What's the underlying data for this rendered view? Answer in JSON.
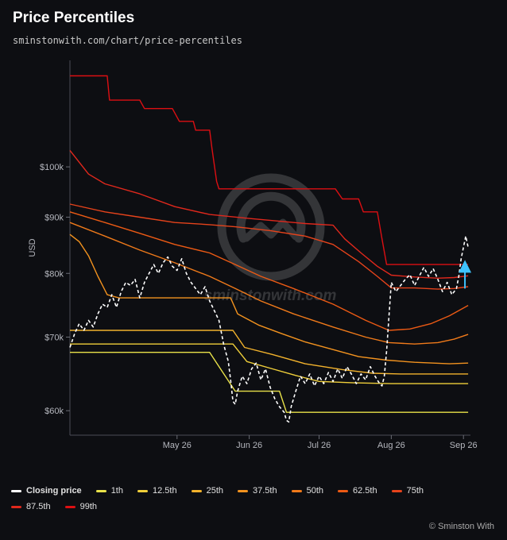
{
  "header": {
    "title": "Price Percentiles",
    "subtitle": "sminstonwith.com/chart/price-percentiles"
  },
  "watermark": "sminstonwith.com",
  "credit": "© Sminston With",
  "chart_data": {
    "type": "line",
    "ylabel": "USD",
    "y_scale": "log",
    "ylim": [
      57000,
      125000
    ],
    "yticks": [
      60000,
      70000,
      80000,
      90000,
      100000
    ],
    "ytick_labels": [
      "$60k",
      "$70k",
      "$80k",
      "$90k",
      "$100k"
    ],
    "xlim": [
      "2024-04-10",
      "2024-09-29"
    ],
    "xticks": [
      "2024-05-26",
      "2024-06-26",
      "2024-07-26",
      "2024-08-26",
      "2024-09-26"
    ],
    "xtick_labels": [
      "May 26",
      "Jun 26",
      "Jul 26",
      "Aug 26",
      "Sep 26"
    ],
    "grid": false,
    "legend_position": "bottom",
    "colors": {
      "closing_price": "#ffffff",
      "arrow": "#3ec3ff",
      "p1": "#e9e24a",
      "p12_5": "#f0cf3a",
      "p25": "#f2b22c",
      "p37_5": "#f3931f",
      "p50": "#f07a1a",
      "p62_5": "#ec5a14",
      "p75": "#e6431b",
      "p87_5": "#e0281c",
      "p99": "#dc0f12"
    },
    "series": [
      {
        "name": "Closing price",
        "key": "closing_price",
        "style": "dashed",
        "points": [
          [
            "2024-04-10",
            68500
          ],
          [
            "2024-04-12",
            70500
          ],
          [
            "2024-04-14",
            72000
          ],
          [
            "2024-04-16",
            71000
          ],
          [
            "2024-04-18",
            72500
          ],
          [
            "2024-04-20",
            71500
          ],
          [
            "2024-04-22",
            73500
          ],
          [
            "2024-04-24",
            75000
          ],
          [
            "2024-04-26",
            74500
          ],
          [
            "2024-04-28",
            76500
          ],
          [
            "2024-04-30",
            74500
          ],
          [
            "2024-05-02",
            77000
          ],
          [
            "2024-05-04",
            78500
          ],
          [
            "2024-05-06",
            78000
          ],
          [
            "2024-05-08",
            79000
          ],
          [
            "2024-05-10",
            76000
          ],
          [
            "2024-05-12",
            78500
          ],
          [
            "2024-05-14",
            80000
          ],
          [
            "2024-05-16",
            81500
          ],
          [
            "2024-05-18",
            80000
          ],
          [
            "2024-05-20",
            81800
          ],
          [
            "2024-05-22",
            82800
          ],
          [
            "2024-05-24",
            81200
          ],
          [
            "2024-05-26",
            80500
          ],
          [
            "2024-05-28",
            82500
          ],
          [
            "2024-05-30",
            80000
          ],
          [
            "2024-06-01",
            78500
          ],
          [
            "2024-06-03",
            77500
          ],
          [
            "2024-06-05",
            76500
          ],
          [
            "2024-06-07",
            77800
          ],
          [
            "2024-06-09",
            75500
          ],
          [
            "2024-06-11",
            74000
          ],
          [
            "2024-06-13",
            72500
          ],
          [
            "2024-06-15",
            69000
          ],
          [
            "2024-06-17",
            66500
          ],
          [
            "2024-06-18",
            64000
          ],
          [
            "2024-06-19",
            61200
          ],
          [
            "2024-06-20",
            60800
          ],
          [
            "2024-06-21",
            62500
          ],
          [
            "2024-06-23",
            64500
          ],
          [
            "2024-06-25",
            63500
          ],
          [
            "2024-06-27",
            65500
          ],
          [
            "2024-06-29",
            66300
          ],
          [
            "2024-07-01",
            64000
          ],
          [
            "2024-07-03",
            65500
          ],
          [
            "2024-07-05",
            63000
          ],
          [
            "2024-07-07",
            61500
          ],
          [
            "2024-07-09",
            60500
          ],
          [
            "2024-07-11",
            59800
          ],
          [
            "2024-07-12",
            58800
          ],
          [
            "2024-07-13",
            58600
          ],
          [
            "2024-07-14",
            60500
          ],
          [
            "2024-07-16",
            62500
          ],
          [
            "2024-07-18",
            64500
          ],
          [
            "2024-07-20",
            63500
          ],
          [
            "2024-07-22",
            64800
          ],
          [
            "2024-07-24",
            63200
          ],
          [
            "2024-07-26",
            64500
          ],
          [
            "2024-07-28",
            63500
          ],
          [
            "2024-07-30",
            65000
          ],
          [
            "2024-08-01",
            63800
          ],
          [
            "2024-08-03",
            65500
          ],
          [
            "2024-08-05",
            64200
          ],
          [
            "2024-08-07",
            65800
          ],
          [
            "2024-08-09",
            64700
          ],
          [
            "2024-08-11",
            63500
          ],
          [
            "2024-08-13",
            64800
          ],
          [
            "2024-08-15",
            64000
          ],
          [
            "2024-08-17",
            65800
          ],
          [
            "2024-08-19",
            64500
          ],
          [
            "2024-08-21",
            63500
          ],
          [
            "2024-08-22",
            63200
          ],
          [
            "2024-08-23",
            64500
          ],
          [
            "2024-08-24",
            68000
          ],
          [
            "2024-08-25",
            73000
          ],
          [
            "2024-08-26",
            78500
          ],
          [
            "2024-08-28",
            77000
          ],
          [
            "2024-08-30",
            78000
          ],
          [
            "2024-09-01",
            79000
          ],
          [
            "2024-09-03",
            79800
          ],
          [
            "2024-09-05",
            78000
          ],
          [
            "2024-09-07",
            79500
          ],
          [
            "2024-09-09",
            81000
          ],
          [
            "2024-09-11",
            79500
          ],
          [
            "2024-09-13",
            80800
          ],
          [
            "2024-09-15",
            79000
          ],
          [
            "2024-09-17",
            77000
          ],
          [
            "2024-09-19",
            78500
          ],
          [
            "2024-09-21",
            76500
          ],
          [
            "2024-09-23",
            77500
          ],
          [
            "2024-09-24",
            79500
          ],
          [
            "2024-09-25",
            82500
          ],
          [
            "2024-09-26",
            84500
          ],
          [
            "2024-09-27",
            86500
          ],
          [
            "2024-09-28",
            84500
          ]
        ]
      },
      {
        "name": "1th",
        "key": "p1",
        "points": [
          [
            "2024-04-10",
            67800
          ],
          [
            "2024-06-09",
            67800
          ],
          [
            "2024-06-20",
            62500
          ],
          [
            "2024-07-09",
            62500
          ],
          [
            "2024-07-12",
            59800
          ],
          [
            "2024-09-28",
            59800
          ]
        ]
      },
      {
        "name": "12.5th",
        "key": "p12_5",
        "points": [
          [
            "2024-04-10",
            69000
          ],
          [
            "2024-06-19",
            69000
          ],
          [
            "2024-06-25",
            66500
          ],
          [
            "2024-07-06",
            65500
          ],
          [
            "2024-07-16",
            64600
          ],
          [
            "2024-07-26",
            63800
          ],
          [
            "2024-08-10",
            63600
          ],
          [
            "2024-08-26",
            63500
          ],
          [
            "2024-09-28",
            63500
          ]
        ]
      },
      {
        "name": "25th",
        "key": "p25",
        "points": [
          [
            "2024-04-10",
            71000
          ],
          [
            "2024-06-19",
            71000
          ],
          [
            "2024-06-24",
            68500
          ],
          [
            "2024-07-06",
            67500
          ],
          [
            "2024-07-20",
            66200
          ],
          [
            "2024-08-05",
            65400
          ],
          [
            "2024-08-18",
            64900
          ],
          [
            "2024-08-30",
            64800
          ],
          [
            "2024-09-28",
            64800
          ]
        ]
      },
      {
        "name": "37.5th",
        "key": "p37_5",
        "points": [
          [
            "2024-04-10",
            86800
          ],
          [
            "2024-04-14",
            85500
          ],
          [
            "2024-04-18",
            83000
          ],
          [
            "2024-04-22",
            79500
          ],
          [
            "2024-04-26",
            76500
          ],
          [
            "2024-05-01",
            76000
          ],
          [
            "2024-06-18",
            76000
          ],
          [
            "2024-06-21",
            73500
          ],
          [
            "2024-06-30",
            71800
          ],
          [
            "2024-07-10",
            70500
          ],
          [
            "2024-07-20",
            69300
          ],
          [
            "2024-08-01",
            68200
          ],
          [
            "2024-08-12",
            67200
          ],
          [
            "2024-08-24",
            66700
          ],
          [
            "2024-09-05",
            66400
          ],
          [
            "2024-09-20",
            66200
          ],
          [
            "2024-09-28",
            66300
          ]
        ]
      },
      {
        "name": "50th",
        "key": "p50",
        "points": [
          [
            "2024-04-10",
            89000
          ],
          [
            "2024-04-25",
            86500
          ],
          [
            "2024-05-10",
            84000
          ],
          [
            "2024-05-25",
            81800
          ],
          [
            "2024-06-09",
            79500
          ],
          [
            "2024-06-20",
            77500
          ],
          [
            "2024-07-01",
            75500
          ],
          [
            "2024-07-15",
            73500
          ],
          [
            "2024-08-01",
            71500
          ],
          [
            "2024-08-15",
            70000
          ],
          [
            "2024-08-25",
            69200
          ],
          [
            "2024-09-05",
            69000
          ],
          [
            "2024-09-15",
            69200
          ],
          [
            "2024-09-22",
            69700
          ],
          [
            "2024-09-28",
            70400
          ]
        ]
      },
      {
        "name": "62.5th",
        "key": "p62_5",
        "points": [
          [
            "2024-04-10",
            91000
          ],
          [
            "2024-04-25",
            89000
          ],
          [
            "2024-05-10",
            87000
          ],
          [
            "2024-05-25",
            85000
          ],
          [
            "2024-06-09",
            83500
          ],
          [
            "2024-06-20",
            81500
          ],
          [
            "2024-07-01",
            79500
          ],
          [
            "2024-07-15",
            77500
          ],
          [
            "2024-08-01",
            75000
          ],
          [
            "2024-08-15",
            72500
          ],
          [
            "2024-08-25",
            71000
          ],
          [
            "2024-09-03",
            71200
          ],
          [
            "2024-09-12",
            72000
          ],
          [
            "2024-09-20",
            73200
          ],
          [
            "2024-09-28",
            74800
          ]
        ]
      },
      {
        "name": "75th",
        "key": "p75",
        "points": [
          [
            "2024-04-10",
            92500
          ],
          [
            "2024-04-25",
            91000
          ],
          [
            "2024-05-10",
            90000
          ],
          [
            "2024-05-25",
            89000
          ],
          [
            "2024-06-09",
            88600
          ],
          [
            "2024-06-20",
            88200
          ],
          [
            "2024-07-05",
            87500
          ],
          [
            "2024-07-20",
            86500
          ],
          [
            "2024-08-01",
            85000
          ],
          [
            "2024-08-12",
            82000
          ],
          [
            "2024-08-20",
            79500
          ],
          [
            "2024-08-26",
            77600
          ],
          [
            "2024-09-05",
            77600
          ],
          [
            "2024-09-15",
            77400
          ],
          [
            "2024-09-22",
            77500
          ],
          [
            "2024-09-28",
            77800
          ]
        ]
      },
      {
        "name": "87.5th",
        "key": "p87_5",
        "points": [
          [
            "2024-04-10",
            103500
          ],
          [
            "2024-04-18",
            98500
          ],
          [
            "2024-04-25",
            96500
          ],
          [
            "2024-05-10",
            94500
          ],
          [
            "2024-05-25",
            92000
          ],
          [
            "2024-06-09",
            90500
          ],
          [
            "2024-06-25",
            89800
          ],
          [
            "2024-07-10",
            89200
          ],
          [
            "2024-07-20",
            88800
          ],
          [
            "2024-08-01",
            88500
          ],
          [
            "2024-08-06",
            86000
          ],
          [
            "2024-08-13",
            83500
          ],
          [
            "2024-08-20",
            81200
          ],
          [
            "2024-08-26",
            79700
          ],
          [
            "2024-09-05",
            79400
          ],
          [
            "2024-09-15",
            79200
          ],
          [
            "2024-09-22",
            79300
          ],
          [
            "2024-09-28",
            79600
          ]
        ]
      },
      {
        "name": "99th",
        "key": "p99",
        "points": [
          [
            "2024-04-10",
            121000
          ],
          [
            "2024-04-26",
            121000
          ],
          [
            "2024-04-27",
            115000
          ],
          [
            "2024-05-10",
            115000
          ],
          [
            "2024-05-12",
            113000
          ],
          [
            "2024-05-24",
            113000
          ],
          [
            "2024-05-27",
            110000
          ],
          [
            "2024-06-02",
            110000
          ],
          [
            "2024-06-03",
            108000
          ],
          [
            "2024-06-09",
            108000
          ],
          [
            "2024-06-10",
            104000
          ],
          [
            "2024-06-12",
            97000
          ],
          [
            "2024-06-13",
            95500
          ],
          [
            "2024-08-02",
            95500
          ],
          [
            "2024-08-05",
            93500
          ],
          [
            "2024-08-12",
            93500
          ],
          [
            "2024-08-14",
            91000
          ],
          [
            "2024-08-20",
            91000
          ],
          [
            "2024-08-22",
            86000
          ],
          [
            "2024-08-24",
            81500
          ],
          [
            "2024-09-28",
            81500
          ]
        ]
      }
    ],
    "annotations": [
      {
        "type": "arrow",
        "x": "2024-09-28",
        "y_from": 77500,
        "y_to": 82000,
        "color_key": "arrow"
      }
    ]
  }
}
